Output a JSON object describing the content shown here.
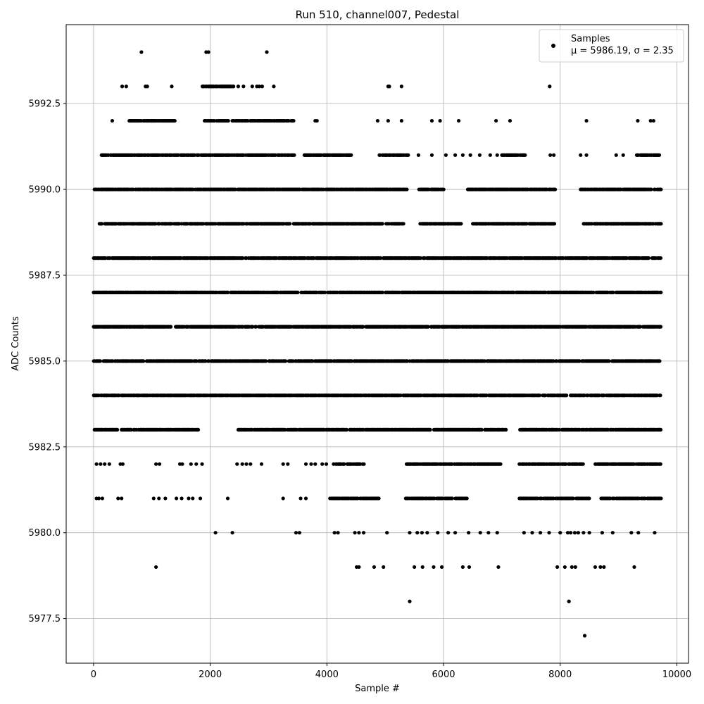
{
  "chart_data": {
    "type": "scatter",
    "title": "Run 510, channel007, Pedestal",
    "xlabel": "Sample #",
    "ylabel": "ADC Counts",
    "xlim": [
      -470,
      10200
    ],
    "ylim": [
      5976.2,
      5994.8
    ],
    "xticks": [
      0,
      2000,
      4000,
      6000,
      8000,
      10000
    ],
    "xtick_labels": [
      "0",
      "2000",
      "4000",
      "6000",
      "8000",
      "10000"
    ],
    "yticks": [
      5977.5,
      5980.0,
      5982.5,
      5985.0,
      5987.5,
      5990.0,
      5992.5
    ],
    "ytick_labels": [
      "5977.5",
      "5980.0",
      "5982.5",
      "5985.0",
      "5987.5",
      "5990.0",
      "5992.5"
    ],
    "grid": true,
    "legend": {
      "placement": "top-right",
      "line1": "Samples",
      "line2": "μ = 5986.19, σ = 2.35"
    },
    "series": [
      {
        "name": "Samples",
        "color": "#000000",
        "n_samples": 9728,
        "band_ranges": [
          {
            "y": 5986,
            "ranges": [
              [
                0,
                9728
              ]
            ]
          },
          {
            "y": 5987,
            "ranges": [
              [
                0,
                9728
              ]
            ]
          },
          {
            "y": 5985,
            "ranges": [
              [
                0,
                9728
              ]
            ]
          },
          {
            "y": 5988,
            "ranges": [
              [
                0,
                9728
              ]
            ]
          },
          {
            "y": 5984,
            "ranges": [
              [
                0,
                9728
              ]
            ]
          },
          {
            "y": 5983,
            "ranges": [
              [
                0,
                1800
              ],
              [
                2480,
                7080
              ],
              [
                7310,
                9728
              ]
            ]
          },
          {
            "y": 5989,
            "ranges": [
              [
                100,
                5320
              ],
              [
                5600,
                6300
              ],
              [
                6500,
                7900
              ],
              [
                8400,
                9728
              ]
            ]
          },
          {
            "y": 5990,
            "ranges": [
              [
                0,
                5370
              ],
              [
                5580,
                6000
              ],
              [
                6400,
                7920
              ],
              [
                8350,
                9728
              ]
            ]
          },
          {
            "y": 5991,
            "ranges": [
              [
                120,
                3450
              ],
              [
                3600,
                4450
              ],
              [
                4900,
                5400
              ],
              [
                7000,
                7400
              ],
              [
                9300,
                9700
              ]
            ]
          },
          {
            "y": 5982,
            "ranges": [
              [
                4100,
                4650
              ],
              [
                5350,
                7000
              ],
              [
                7300,
                8400
              ],
              [
                8600,
                9728
              ]
            ]
          },
          {
            "y": 5981,
            "ranges": [
              [
                4050,
                4900
              ],
              [
                5350,
                6400
              ],
              [
                7300,
                8500
              ],
              [
                8700,
                9728
              ]
            ]
          },
          {
            "y": 5992,
            "ranges": [
              [
                600,
                1400
              ],
              [
                1900,
                3430
              ]
            ]
          },
          {
            "y": 5993,
            "ranges": [
              [
                1850,
                2400
              ]
            ]
          }
        ],
        "sparse": [
          [
            50,
            5982
          ],
          [
            120,
            5982
          ],
          [
            190,
            5982
          ],
          [
            270,
            5982
          ],
          [
            460,
            5982
          ],
          [
            500,
            5982
          ],
          [
            1070,
            5982
          ],
          [
            1130,
            5982
          ],
          [
            1480,
            5982
          ],
          [
            1520,
            5982
          ],
          [
            1670,
            5982
          ],
          [
            1760,
            5982
          ],
          [
            1860,
            5982
          ],
          [
            2460,
            5982
          ],
          [
            2550,
            5982
          ],
          [
            2620,
            5982
          ],
          [
            2690,
            5982
          ],
          [
            2880,
            5982
          ],
          [
            3250,
            5982
          ],
          [
            3330,
            5982
          ],
          [
            3640,
            5982
          ],
          [
            3730,
            5982
          ],
          [
            3800,
            5982
          ],
          [
            3920,
            5982
          ],
          [
            3990,
            5982
          ],
          [
            50,
            5981
          ],
          [
            90,
            5981
          ],
          [
            150,
            5981
          ],
          [
            420,
            5981
          ],
          [
            480,
            5981
          ],
          [
            1030,
            5981
          ],
          [
            1120,
            5981
          ],
          [
            1230,
            5981
          ],
          [
            1420,
            5981
          ],
          [
            1510,
            5981
          ],
          [
            1630,
            5981
          ],
          [
            1700,
            5981
          ],
          [
            1830,
            5981
          ],
          [
            2300,
            5981
          ],
          [
            3250,
            5981
          ],
          [
            3550,
            5981
          ],
          [
            3640,
            5981
          ],
          [
            2090,
            5980
          ],
          [
            2380,
            5980
          ],
          [
            3470,
            5980
          ],
          [
            3530,
            5980
          ],
          [
            4130,
            5980
          ],
          [
            4190,
            5980
          ],
          [
            4480,
            5980
          ],
          [
            4550,
            5980
          ],
          [
            4630,
            5980
          ],
          [
            5030,
            5980
          ],
          [
            5420,
            5980
          ],
          [
            5550,
            5980
          ],
          [
            5630,
            5980
          ],
          [
            5720,
            5980
          ],
          [
            5900,
            5980
          ],
          [
            6080,
            5980
          ],
          [
            6200,
            5980
          ],
          [
            6430,
            5980
          ],
          [
            6630,
            5980
          ],
          [
            6770,
            5980
          ],
          [
            6920,
            5980
          ],
          [
            7380,
            5980
          ],
          [
            7520,
            5980
          ],
          [
            7660,
            5980
          ],
          [
            7810,
            5980
          ],
          [
            8000,
            5980
          ],
          [
            8130,
            5980
          ],
          [
            8180,
            5980
          ],
          [
            8250,
            5980
          ],
          [
            8310,
            5980
          ],
          [
            8400,
            5980
          ],
          [
            8500,
            5980
          ],
          [
            8720,
            5980
          ],
          [
            8900,
            5980
          ],
          [
            9220,
            5980
          ],
          [
            9340,
            5980
          ],
          [
            9620,
            5980
          ],
          [
            1070,
            5979
          ],
          [
            4510,
            5979
          ],
          [
            4550,
            5979
          ],
          [
            4810,
            5979
          ],
          [
            4970,
            5979
          ],
          [
            5500,
            5979
          ],
          [
            5640,
            5979
          ],
          [
            5830,
            5979
          ],
          [
            5970,
            5979
          ],
          [
            6330,
            5979
          ],
          [
            6440,
            5979
          ],
          [
            6940,
            5979
          ],
          [
            7950,
            5979
          ],
          [
            8080,
            5979
          ],
          [
            8200,
            5979
          ],
          [
            8260,
            5979
          ],
          [
            8600,
            5979
          ],
          [
            8690,
            5979
          ],
          [
            8750,
            5979
          ],
          [
            9270,
            5979
          ],
          [
            5420,
            5978
          ],
          [
            8150,
            5978
          ],
          [
            8420,
            5977
          ],
          [
            140,
            5990
          ],
          [
            230,
            5990
          ],
          [
            160,
            5991
          ],
          [
            250,
            5991
          ],
          [
            340,
            5991
          ],
          [
            3780,
            5991
          ],
          [
            3880,
            5991
          ],
          [
            3960,
            5991
          ],
          [
            4100,
            5991
          ],
          [
            4130,
            5991
          ],
          [
            4350,
            5991
          ],
          [
            4380,
            5991
          ],
          [
            5570,
            5991
          ],
          [
            5800,
            5991
          ],
          [
            6040,
            5991
          ],
          [
            6200,
            5991
          ],
          [
            6330,
            5991
          ],
          [
            6460,
            5991
          ],
          [
            6620,
            5991
          ],
          [
            6800,
            5991
          ],
          [
            6920,
            5991
          ],
          [
            7830,
            5991
          ],
          [
            7890,
            5991
          ],
          [
            8350,
            5991
          ],
          [
            8450,
            5991
          ],
          [
            8960,
            5991
          ],
          [
            9080,
            5991
          ],
          [
            320,
            5992
          ],
          [
            620,
            5992
          ],
          [
            3420,
            5992
          ],
          [
            3800,
            5992
          ],
          [
            3830,
            5992
          ],
          [
            4870,
            5992
          ],
          [
            5050,
            5992
          ],
          [
            5280,
            5992
          ],
          [
            5800,
            5992
          ],
          [
            5940,
            5992
          ],
          [
            6260,
            5992
          ],
          [
            6900,
            5992
          ],
          [
            7140,
            5992
          ],
          [
            8450,
            5992
          ],
          [
            9330,
            5992
          ],
          [
            9550,
            5992
          ],
          [
            9600,
            5992
          ],
          [
            490,
            5993
          ],
          [
            560,
            5993
          ],
          [
            890,
            5993
          ],
          [
            920,
            5993
          ],
          [
            1340,
            5993
          ],
          [
            2480,
            5993
          ],
          [
            2570,
            5993
          ],
          [
            2720,
            5993
          ],
          [
            2800,
            5993
          ],
          [
            2840,
            5993
          ],
          [
            2890,
            5993
          ],
          [
            3090,
            5993
          ],
          [
            5050,
            5993
          ],
          [
            5070,
            5993
          ],
          [
            5280,
            5993
          ],
          [
            7820,
            5993
          ],
          [
            820,
            5994
          ],
          [
            1930,
            5994
          ],
          [
            1970,
            5994
          ],
          [
            2970,
            5994
          ]
        ]
      }
    ]
  }
}
